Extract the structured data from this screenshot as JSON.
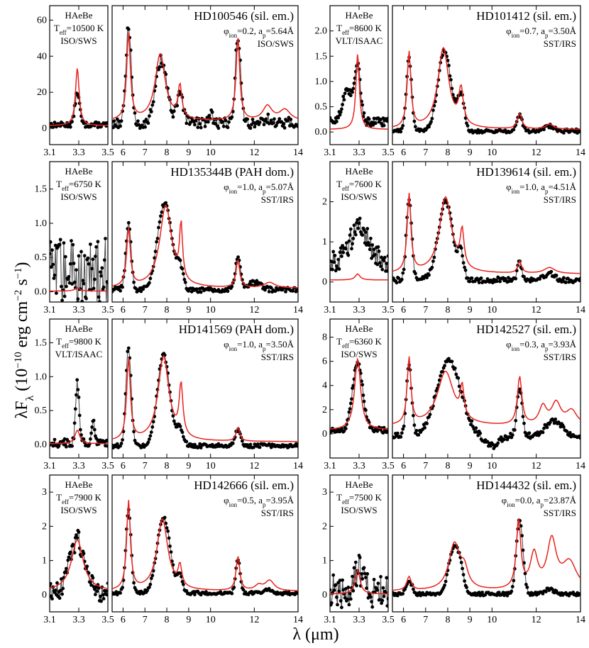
{
  "ylabel": "λF_λ (10^-10 erg cm^-2 s^-1)",
  "xlabel": "λ (μm)",
  "chart_data": [
    {
      "type": "line",
      "panel": "HD100546-3um",
      "lines": [
        "HAeBe",
        "T_eff=10500 K",
        "ISO/SWS"
      ],
      "xlim": [
        3.1,
        3.5
      ],
      "ylim": [
        -9,
        68
      ],
      "yticks": [
        0,
        20,
        40,
        60
      ],
      "ytick_labels": [
        "0",
        "20",
        "40",
        "60"
      ],
      "peaks": [
        [
          3.29,
          0.016,
          18
        ]
      ],
      "model_peaks": [
        [
          3.29,
          0.015,
          32
        ]
      ],
      "base": 2,
      "model_base": 1.5,
      "noise": 1.5,
      "series": [
        {
          "name": "observed"
        },
        {
          "name": "model"
        }
      ]
    },
    {
      "type": "line",
      "panel": "HD100546",
      "name": "HD100546 (sil. em.)",
      "info": "φ_ion=0.2, a_p=5.64Å",
      "instrument": "ISO/SWS",
      "xlim": [
        5.5,
        14
      ],
      "ylim": [
        -9,
        68
      ],
      "peaks": [
        [
          6.25,
          0.12,
          53
        ],
        [
          7.75,
          0.25,
          35
        ],
        [
          8.6,
          0.15,
          15
        ],
        [
          11.25,
          0.12,
          48
        ],
        [
          10.0,
          0.1,
          5
        ],
        [
          12.6,
          0.2,
          2
        ]
      ],
      "model_peaks": [
        [
          6.25,
          0.1,
          48
        ],
        [
          7.7,
          0.28,
          37
        ],
        [
          8.6,
          0.1,
          18
        ],
        [
          11.25,
          0.1,
          46
        ],
        [
          12.6,
          0.25,
          8
        ],
        [
          13.4,
          0.3,
          6
        ]
      ],
      "base": 3,
      "model_base": 4,
      "noise": 3,
      "series": [
        {
          "name": "observed"
        },
        {
          "name": "model"
        }
      ]
    },
    {
      "type": "line",
      "panel": "HD101412-3um",
      "lines": [
        "HAeBe",
        "T_eff=8600 K",
        "VLT/ISAAC"
      ],
      "xlim": [
        3.1,
        3.5
      ],
      "ylim": [
        -0.25,
        2.5
      ],
      "yticks": [
        0,
        0.5,
        1.0,
        1.5,
        2.0
      ],
      "ytick_labels": [
        "0.0",
        "0.5",
        "1.0",
        "1.5",
        "2.0"
      ],
      "peaks": [
        [
          3.29,
          0.02,
          1.1
        ],
        [
          3.22,
          0.035,
          0.6
        ]
      ],
      "model_peaks": [
        [
          3.29,
          0.014,
          1.5
        ]
      ],
      "base": 0.2,
      "model_base": 0.05,
      "noise": 0.08,
      "series": [
        {
          "name": "observed"
        },
        {
          "name": "model"
        }
      ]
    },
    {
      "type": "line",
      "panel": "HD101412",
      "name": "HD101412 (sil. em.)",
      "info": "φ_ion=0.7, a_p=3.50Å",
      "instrument": "SST/IRS",
      "xlim": [
        5.5,
        14
      ],
      "ylim": [
        -0.25,
        2.5
      ],
      "peaks": [
        [
          6.25,
          0.12,
          1.45
        ],
        [
          7.85,
          0.3,
          1.58
        ],
        [
          8.6,
          0.15,
          0.7
        ],
        [
          11.25,
          0.12,
          0.3
        ],
        [
          12.6,
          0.2,
          0.1
        ]
      ],
      "model_peaks": [
        [
          6.25,
          0.1,
          1.5
        ],
        [
          7.8,
          0.3,
          1.6
        ],
        [
          8.6,
          0.12,
          0.7
        ],
        [
          11.25,
          0.12,
          0.3
        ],
        [
          12.6,
          0.2,
          0.1
        ]
      ],
      "base": 0.02,
      "model_base": 0.05,
      "noise": 0.04,
      "series": [
        {
          "name": "observed"
        },
        {
          "name": "model"
        }
      ]
    },
    {
      "type": "line",
      "panel": "HD135344B-3um",
      "lines": [
        "HAeBe",
        "T_eff=6750 K",
        "ISO/SWS"
      ],
      "xlim": [
        3.1,
        3.5
      ],
      "ylim": [
        -0.15,
        1.9
      ],
      "yticks": [
        0,
        0.5,
        1.0,
        1.5
      ],
      "ytick_labels": [
        "0.0",
        "0.5",
        "1.0",
        "1.5"
      ],
      "peaks": [],
      "model_peaks": [
        [
          3.29,
          0.02,
          0.05
        ]
      ],
      "base": 0.3,
      "model_base": 0.01,
      "noise": 0.5,
      "series": [
        {
          "name": "observed"
        },
        {
          "name": "model"
        }
      ]
    },
    {
      "type": "line",
      "panel": "HD135344B",
      "name": "HD135344B (PAH dom.)",
      "info": "φ_ion=1.0, a_p=5.07Å",
      "instrument": "SST/IRS",
      "xlim": [
        5.5,
        14
      ],
      "ylim": [
        -0.15,
        1.9
      ],
      "peaks": [
        [
          6.25,
          0.12,
          0.95
        ],
        [
          7.9,
          0.33,
          1.25
        ],
        [
          8.6,
          0.15,
          0.3
        ],
        [
          11.25,
          0.12,
          0.45
        ],
        [
          12.0,
          0.3,
          0.1
        ]
      ],
      "model_peaks": [
        [
          6.25,
          0.1,
          0.85
        ],
        [
          7.95,
          0.33,
          1.2
        ],
        [
          8.65,
          0.08,
          0.8
        ],
        [
          11.25,
          0.1,
          0.4
        ],
        [
          12.7,
          0.3,
          0.08
        ]
      ],
      "base": 0.03,
      "model_base": 0.05,
      "noise": 0.04,
      "series": [
        {
          "name": "observed"
        },
        {
          "name": "model"
        }
      ]
    },
    {
      "type": "line",
      "panel": "HD139614-3um",
      "lines": [
        "HAeBe",
        "T_eff=7600 K",
        "ISO/SWS"
      ],
      "xlim": [
        3.1,
        3.5
      ],
      "ylim": [
        -0.5,
        3.0
      ],
      "yticks": [
        0,
        1,
        2
      ],
      "ytick_labels": [
        "0",
        "1",
        "2"
      ],
      "peaks": [
        [
          3.3,
          0.07,
          0.8
        ]
      ],
      "model_peaks": [
        [
          3.29,
          0.02,
          0.15
        ]
      ],
      "base": 0.5,
      "model_base": 0.05,
      "noise": 0.3,
      "series": [
        {
          "name": "observed"
        },
        {
          "name": "model"
        }
      ]
    },
    {
      "type": "line",
      "panel": "HD139614",
      "name": "HD139614 (sil. em.)",
      "info": "φ_ion=1.0, a_p=4.51Å",
      "instrument": "SST/IRS",
      "xlim": [
        5.5,
        14
      ],
      "ylim": [
        -0.5,
        3.0
      ],
      "peaks": [
        [
          6.25,
          0.12,
          2.05
        ],
        [
          7.9,
          0.33,
          1.95
        ],
        [
          8.6,
          0.12,
          0.6
        ],
        [
          11.25,
          0.1,
          0.45
        ],
        [
          12.6,
          0.2,
          0.15
        ]
      ],
      "model_peaks": [
        [
          6.25,
          0.1,
          1.95
        ],
        [
          7.9,
          0.33,
          1.9
        ],
        [
          8.65,
          0.1,
          0.9
        ],
        [
          11.25,
          0.1,
          0.3
        ],
        [
          12.6,
          0.3,
          0.15
        ]
      ],
      "base": 0.05,
      "model_base": 0.2,
      "noise": 0.07,
      "series": [
        {
          "name": "observed"
        },
        {
          "name": "model"
        }
      ]
    },
    {
      "type": "line",
      "panel": "HD141569-3um",
      "lines": [
        "HAeBe",
        "T_eff=9800 K",
        "VLT/ISAAC"
      ],
      "xlim": [
        3.1,
        3.5
      ],
      "ylim": [
        -0.2,
        1.85
      ],
      "yticks": [
        0,
        0.5,
        1.0,
        1.5
      ],
      "ytick_labels": [
        "0.0",
        "0.5",
        "1.0",
        "1.5"
      ],
      "peaks": [
        [
          3.29,
          0.012,
          0.9
        ],
        [
          3.4,
          0.01,
          0.3
        ]
      ],
      "model_peaks": [
        [
          3.29,
          0.02,
          0.2
        ]
      ],
      "base": 0.02,
      "model_base": 0.01,
      "noise": 0.06,
      "series": [
        {
          "name": "observed"
        },
        {
          "name": "model"
        }
      ]
    },
    {
      "type": "line",
      "panel": "HD141569",
      "name": "HD141569 (PAH dom.)",
      "info": "φ_ion=1.0, a_p=3.50Å",
      "instrument": "SST/IRS",
      "xlim": [
        5.5,
        14
      ],
      "ylim": [
        -0.2,
        1.85
      ],
      "peaks": [
        [
          6.25,
          0.12,
          1.45
        ],
        [
          7.85,
          0.28,
          1.35
        ],
        [
          8.6,
          0.15,
          0.25
        ],
        [
          11.25,
          0.12,
          0.25
        ]
      ],
      "model_peaks": [
        [
          6.25,
          0.1,
          1.2
        ],
        [
          7.85,
          0.3,
          1.25
        ],
        [
          8.65,
          0.1,
          0.75
        ],
        [
          11.25,
          0.1,
          0.2
        ]
      ],
      "base": -0.02,
      "model_base": 0.04,
      "noise": 0.03,
      "series": [
        {
          "name": "observed"
        },
        {
          "name": "model"
        }
      ]
    },
    {
      "type": "line",
      "panel": "HD142527-3um",
      "lines": [
        "HAeBe",
        "T_eff=6360 K",
        "ISO/SWS"
      ],
      "xlim": [
        3.1,
        3.5
      ],
      "ylim": [
        -2.0,
        9.5
      ],
      "yticks": [
        0,
        2,
        4,
        6,
        8
      ],
      "ytick_labels": [
        "0",
        "2",
        "4",
        "6",
        "8"
      ],
      "peaks": [
        [
          3.29,
          0.035,
          5.5
        ]
      ],
      "model_peaks": [
        [
          3.29,
          0.025,
          5.9
        ]
      ],
      "base": 0.3,
      "model_base": 0.3,
      "noise": 0.25,
      "series": [
        {
          "name": "observed"
        },
        {
          "name": "model"
        }
      ]
    },
    {
      "type": "line",
      "panel": "HD142527",
      "name": "HD142527 (sil. em.)",
      "info": "φ_ion=0.3, a_p=3.93Å",
      "instrument": "SST/IRS",
      "xlim": [
        5.5,
        14
      ],
      "ylim": [
        -2.0,
        9.5
      ],
      "peaks": [
        [
          6.25,
          0.12,
          5.8
        ],
        [
          8.05,
          0.55,
          6.2
        ],
        [
          11.25,
          0.12,
          4.0
        ],
        [
          12.8,
          0.4,
          1.2
        ],
        [
          10.0,
          0.3,
          -0.8
        ]
      ],
      "model_peaks": [
        [
          6.25,
          0.1,
          5.5
        ],
        [
          7.9,
          0.45,
          4.5
        ],
        [
          8.65,
          0.1,
          2.5
        ],
        [
          11.25,
          0.12,
          4.0
        ],
        [
          12.3,
          0.2,
          1.5
        ],
        [
          12.9,
          0.25,
          1.8
        ],
        [
          13.6,
          0.3,
          1.2
        ]
      ],
      "base": -0.2,
      "model_base": 0.6,
      "noise": 0.25,
      "series": [
        {
          "name": "observed"
        },
        {
          "name": "model"
        }
      ]
    },
    {
      "type": "line",
      "panel": "HD142666-3um",
      "lines": [
        "HAeBe",
        "T_eff=7900 K",
        "ISO/SWS"
      ],
      "xlim": [
        3.1,
        3.5
      ],
      "ylim": [
        -0.5,
        3.5
      ],
      "yticks": [
        0,
        1,
        2,
        3
      ],
      "ytick_labels": [
        "0",
        "1",
        "2",
        "3"
      ],
      "peaks": [
        [
          3.29,
          0.05,
          1.5
        ]
      ],
      "model_peaks": [
        [
          3.29,
          0.05,
          1.5
        ]
      ],
      "base": 0.1,
      "model_base": 0.1,
      "noise": 0.3,
      "series": [
        {
          "name": "observed"
        },
        {
          "name": "model"
        }
      ]
    },
    {
      "type": "line",
      "panel": "HD142666",
      "name": "HD142666 (sil. em.)",
      "info": "φ_ion=0.5, a_p=3.95Å",
      "instrument": "SST/IRS",
      "xlim": [
        5.5,
        14
      ],
      "ylim": [
        -0.5,
        3.5
      ],
      "peaks": [
        [
          6.25,
          0.12,
          2.4
        ],
        [
          7.85,
          0.3,
          2.2
        ],
        [
          8.6,
          0.12,
          0.5
        ],
        [
          11.25,
          0.1,
          1.0
        ],
        [
          12.6,
          0.2,
          0.1
        ]
      ],
      "model_peaks": [
        [
          6.25,
          0.1,
          2.6
        ],
        [
          7.8,
          0.3,
          2.1
        ],
        [
          8.6,
          0.1,
          0.6
        ],
        [
          11.25,
          0.1,
          1.0
        ],
        [
          12.2,
          0.2,
          0.15
        ],
        [
          12.7,
          0.25,
          0.3
        ]
      ],
      "base": 0.05,
      "model_base": 0.1,
      "noise": 0.05,
      "series": [
        {
          "name": "observed"
        },
        {
          "name": "model"
        }
      ]
    },
    {
      "type": "line",
      "panel": "HD144432-3um",
      "lines": [
        "HAeBe",
        "T_eff=7500 K",
        "ISO/SWS"
      ],
      "xlim": [
        3.1,
        3.5
      ],
      "ylim": [
        -0.5,
        3.5
      ],
      "yticks": [
        0,
        1,
        2,
        3
      ],
      "ytick_labels": [
        "0",
        "1",
        "2",
        "3"
      ],
      "peaks": [
        [
          3.29,
          0.03,
          0.6
        ]
      ],
      "model_peaks": [
        [
          3.29,
          0.02,
          0.7
        ]
      ],
      "base": 0.1,
      "model_base": 0.02,
      "noise": 0.5,
      "series": [
        {
          "name": "observed"
        },
        {
          "name": "model"
        }
      ]
    },
    {
      "type": "line",
      "panel": "HD144432",
      "name": "HD144432 (sil. em.)",
      "info": "φ_ion=0.0, a_p=23.87Å",
      "instrument": "SST/IRS",
      "xlim": [
        5.5,
        14
      ],
      "ylim": [
        -0.5,
        3.5
      ],
      "peaks": [
        [
          6.25,
          0.14,
          0.4
        ],
        [
          8.3,
          0.25,
          1.4
        ],
        [
          8.6,
          0.12,
          0.3
        ],
        [
          11.25,
          0.15,
          2.2
        ],
        [
          12.6,
          0.2,
          0.15
        ]
      ],
      "model_peaks": [
        [
          6.25,
          0.12,
          0.4
        ],
        [
          8.3,
          0.3,
          1.35
        ],
        [
          8.75,
          0.2,
          0.5
        ],
        [
          11.2,
          0.12,
          2.0
        ],
        [
          11.9,
          0.2,
          1.0
        ],
        [
          12.7,
          0.25,
          1.4
        ],
        [
          13.5,
          0.4,
          0.8
        ]
      ],
      "base": 0.02,
      "model_base": 0.1,
      "noise": 0.05,
      "series": [
        {
          "name": "observed"
        },
        {
          "name": "model"
        }
      ]
    }
  ]
}
